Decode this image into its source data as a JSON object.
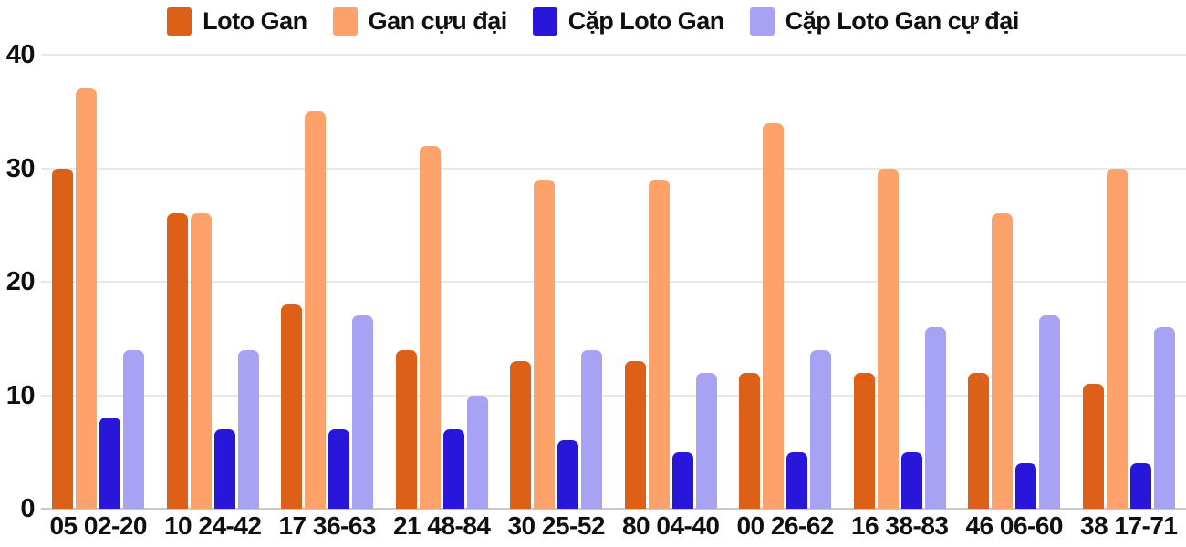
{
  "chart_data": {
    "type": "bar",
    "title": "",
    "xlabel": "",
    "ylabel": "",
    "ylim": [
      0,
      40
    ],
    "yticks": [
      0,
      10,
      20,
      30,
      40
    ],
    "grid": true,
    "legend_position": "top",
    "categories": [
      "05 02-20",
      "10 24-42",
      "17 36-63",
      "21 48-84",
      "30 25-52",
      "80 04-40",
      "00 26-62",
      "16 38-83",
      "46 06-60",
      "38 17-71"
    ],
    "series": [
      {
        "name": "Loto Gan",
        "color": "#dc6018",
        "values": [
          30,
          26,
          18,
          14,
          13,
          13,
          12,
          12,
          12,
          11
        ]
      },
      {
        "name": "Gan cựu đại",
        "color": "#fda26b",
        "values": [
          37,
          26,
          35,
          32,
          29,
          29,
          34,
          30,
          26,
          30
        ]
      },
      {
        "name": "Cặp Loto Gan",
        "color": "#2817db",
        "values": [
          8,
          7,
          7,
          7,
          6,
          5,
          5,
          5,
          4,
          4
        ]
      },
      {
        "name": "Cặp Loto Gan cự đại",
        "color": "#a7a2f4",
        "values": [
          14,
          14,
          17,
          10,
          14,
          12,
          14,
          16,
          17,
          16
        ]
      }
    ]
  },
  "colors": {
    "gridline": "#e8e8e8",
    "axis_line": "#c9c9c9",
    "text": "#0f0f0f",
    "background": "#ffffff"
  }
}
